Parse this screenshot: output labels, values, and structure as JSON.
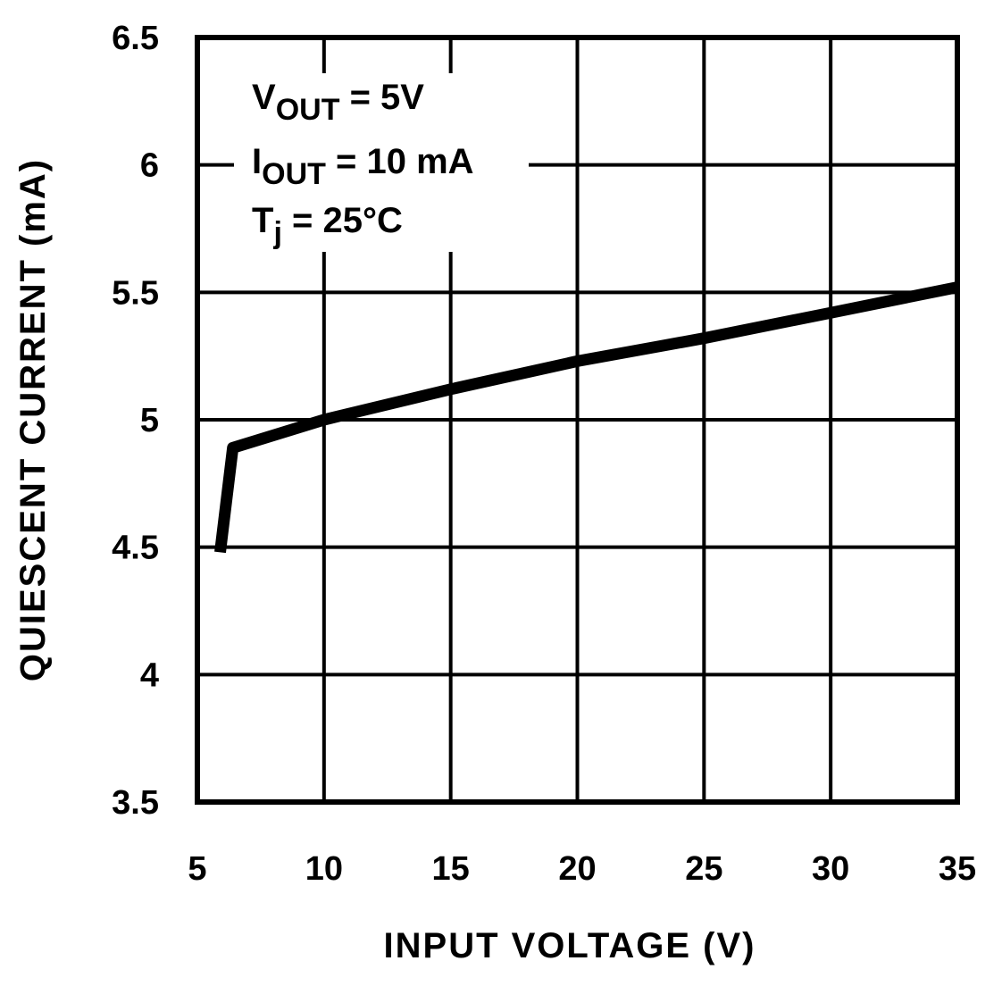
{
  "chart_data": {
    "type": "line",
    "xlabel": "INPUT VOLTAGE (V)",
    "ylabel": "QUIESCENT CURRENT (mA)",
    "xlim": [
      5,
      35
    ],
    "ylim": [
      3.5,
      6.5
    ],
    "x_ticks": [
      "5",
      "10",
      "15",
      "20",
      "25",
      "30",
      "35"
    ],
    "y_ticks": [
      "6.5",
      "6",
      "5.5",
      "5",
      "4.5",
      "4",
      "3.5"
    ],
    "grid": true,
    "annotations": [
      {
        "main": "V",
        "sub": "OUT",
        "rest": " = 5V"
      },
      {
        "main": "I",
        "sub": "OUT",
        "rest": " = 10 mA"
      },
      {
        "main": "T",
        "sub": "j",
        "rest": " = 25°C"
      }
    ],
    "series": [
      {
        "color": "#000000",
        "x": [
          5.9,
          6.4,
          10,
          15,
          20,
          25,
          30,
          35
        ],
        "y": [
          4.48,
          4.89,
          5.0,
          5.12,
          5.23,
          5.32,
          5.42,
          5.52
        ]
      }
    ]
  }
}
